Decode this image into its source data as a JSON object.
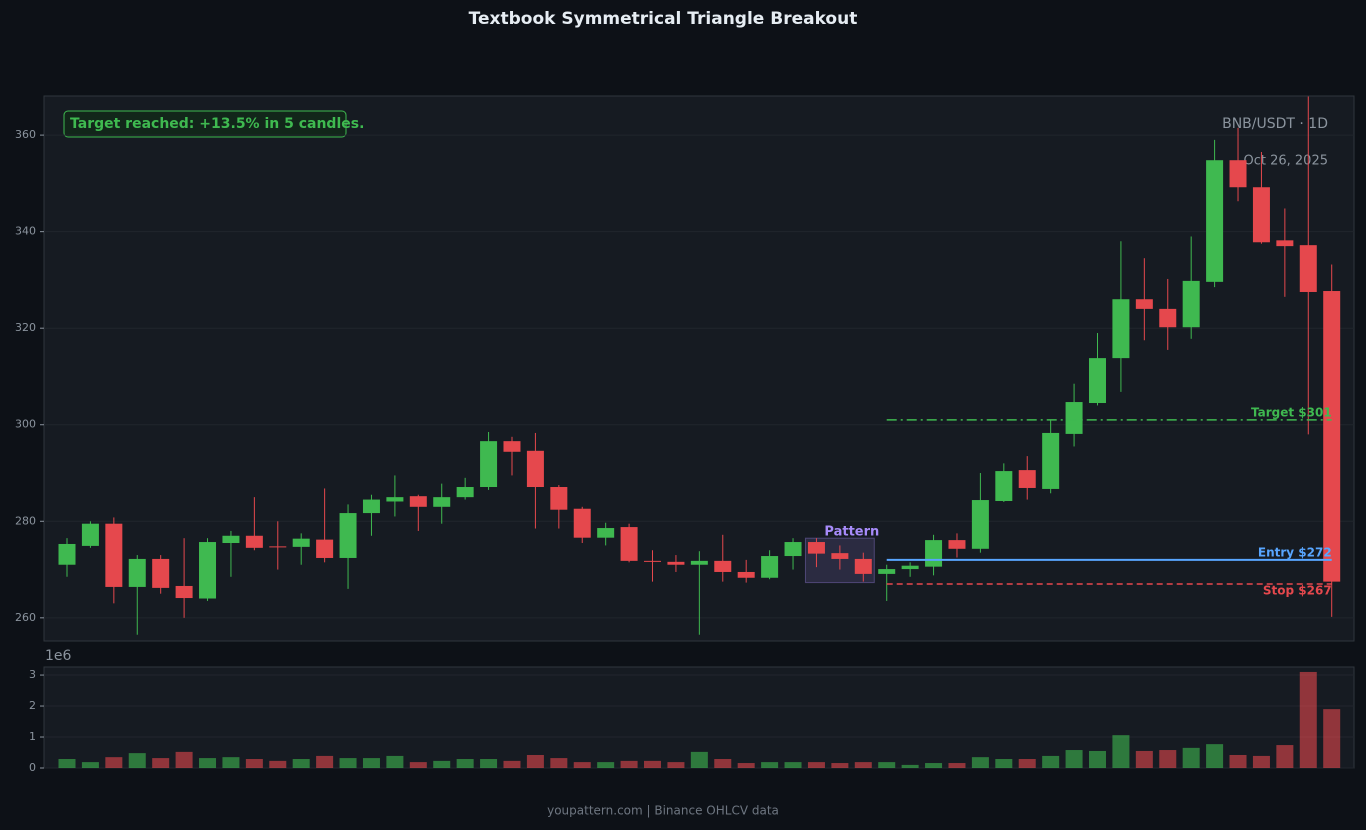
{
  "chart_data": {
    "type": "candlestick",
    "title": "Textbook Symmetrical Triangle Breakout",
    "symbol": "BNB/USDT · 1D",
    "date": "Oct 26, 2025",
    "callout": "Target reached: +13.5% in 5 candles.",
    "footer": "youpattern.com | Binance OHLCV data",
    "up_color": "#3fb950",
    "down_color": "#e5484d",
    "grid": true,
    "ylim": [
      255.2,
      368.1
    ],
    "yticks": [
      260,
      280,
      300,
      320,
      340,
      360
    ],
    "open": [
      271,
      274.9,
      279.5,
      266.4,
      272.2,
      266.6,
      264,
      275.5,
      277,
      274.8,
      274.7,
      276.2,
      272.4,
      281.7,
      284.1,
      285.2,
      283,
      285,
      287.1,
      296.6,
      294.6,
      287.1,
      282.6,
      276.6,
      278.8,
      271.8,
      271.6,
      271,
      271.8,
      269.5,
      268.3,
      272.8,
      275.7,
      273.4,
      272.2,
      269.1,
      270.1,
      270.6,
      276.1,
      274.3,
      284.2,
      290.6,
      286.7,
      298.1,
      304.5,
      313.8,
      326,
      324,
      320.2,
      329.6,
      354.8,
      349.2,
      338.2,
      337.2,
      327.7
    ],
    "high": [
      276.5,
      280,
      280.8,
      273,
      273,
      276.5,
      276.5,
      278,
      285,
      280,
      277.5,
      286.8,
      283.5,
      285.5,
      289.5,
      285.5,
      287.8,
      289,
      298.5,
      297.5,
      298.3,
      287.5,
      283,
      279.7,
      279.5,
      274,
      273,
      273.8,
      277.2,
      272,
      274,
      276.5,
      276.5,
      275,
      273.5,
      271,
      271.5,
      277.2,
      277.5,
      290,
      292,
      293.5,
      301,
      308.5,
      319,
      338,
      334.5,
      330.2,
      339,
      359,
      361.5,
      356.5,
      344.8,
      368,
      333.2
    ],
    "low": [
      268.5,
      274.5,
      263,
      256.5,
      265,
      260,
      263.5,
      268.5,
      274,
      270,
      271,
      271.5,
      266,
      277,
      281,
      278,
      279.5,
      284.5,
      286.5,
      289.5,
      278.5,
      278.5,
      275.5,
      275,
      271.5,
      267.5,
      269.5,
      256.5,
      267.5,
      267.3,
      268,
      270,
      270.5,
      270,
      267.5,
      263.5,
      268.5,
      268.8,
      272.5,
      273.5,
      284,
      284.5,
      285.8,
      295.5,
      304,
      306.8,
      317.5,
      315.5,
      317.8,
      328.5,
      346.3,
      337.5,
      326.5,
      298,
      260.2
    ],
    "close": [
      275.3,
      279.5,
      266.4,
      272.2,
      266.2,
      264.1,
      275.7,
      277,
      274.5,
      274.6,
      276.4,
      272.4,
      281.7,
      284.5,
      285,
      283,
      285,
      287.1,
      296.6,
      294.4,
      287.1,
      282.4,
      276.6,
      278.6,
      271.8,
      271.6,
      271,
      271.8,
      269.5,
      268.3,
      272.8,
      275.7,
      273.3,
      272.2,
      269.1,
      270.1,
      270.8,
      276.1,
      274.3,
      284.4,
      290.4,
      286.9,
      298.3,
      304.7,
      313.8,
      326,
      324,
      320.2,
      329.8,
      354.8,
      349.2,
      337.8,
      337,
      327.5,
      267.5
    ],
    "volume": [
      0.29,
      0.19,
      0.35,
      0.48,
      0.32,
      0.52,
      0.32,
      0.35,
      0.29,
      0.23,
      0.29,
      0.39,
      0.32,
      0.32,
      0.39,
      0.19,
      0.23,
      0.29,
      0.29,
      0.23,
      0.42,
      0.32,
      0.19,
      0.19,
      0.23,
      0.23,
      0.19,
      0.52,
      0.29,
      0.16,
      0.19,
      0.19,
      0.19,
      0.16,
      0.19,
      0.19,
      0.1,
      0.16,
      0.16,
      0.35,
      0.29,
      0.29,
      0.39,
      0.58,
      0.55,
      1.06,
      0.55,
      0.58,
      0.65,
      0.77,
      0.42,
      0.39,
      0.74,
      3.1,
      1.9
    ],
    "volume_offset_label": "1e6",
    "volume_ylim": [
      0,
      3.26
    ],
    "volume_yticks": [
      0,
      1,
      2,
      3
    ],
    "pattern": {
      "label": "Pattern",
      "start": 32,
      "end": 34,
      "high": 276.5,
      "low": 267.3,
      "color": "#a78bfa"
    },
    "levels": [
      {
        "label": "Target $301",
        "value": 301,
        "color": "#3fb950",
        "style": "dashdot",
        "start": 35
      },
      {
        "label": "Entry $272",
        "value": 272,
        "color": "#58a6ff",
        "style": "solid",
        "start": 35
      },
      {
        "label": "Stop $267",
        "value": 267,
        "color": "#e5484d",
        "style": "dashed",
        "start": 35
      }
    ]
  }
}
